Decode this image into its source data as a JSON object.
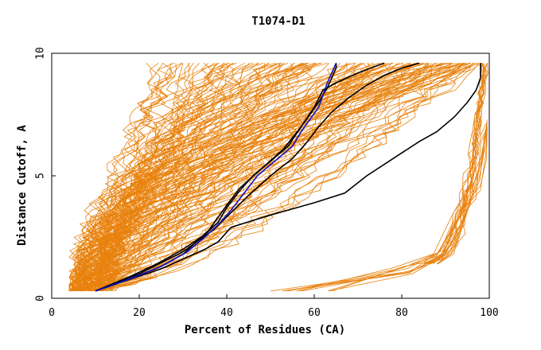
{
  "chart_data": {
    "type": "line",
    "title": "T1074-D1",
    "xlabel": "Percent of Residues (CA)",
    "ylabel": "Distance Cutoff, A",
    "xlim": [
      0,
      100
    ],
    "ylim": [
      0,
      10
    ],
    "x_ticks": [
      "0",
      "20",
      "40",
      "60",
      "80",
      "100"
    ],
    "y_ticks": [
      "0",
      "5",
      "10"
    ],
    "grid": false,
    "legend": "none",
    "colors": {
      "background_models": "#e8820e",
      "highlight_black": "#000000",
      "highlight_blue": "#1010c8"
    },
    "highlight_series": [
      {
        "color": "#000000",
        "x": [
          10,
          18,
          24,
          30,
          35,
          38,
          40,
          43,
          46,
          50,
          54,
          57,
          59,
          61,
          63,
          64,
          65,
          65
        ],
        "y": [
          0.3,
          0.9,
          1.4,
          2.0,
          2.6,
          3.1,
          3.7,
          4.4,
          5.0,
          5.6,
          6.2,
          7.0,
          7.5,
          8.0,
          8.6,
          9.0,
          9.4,
          9.6
        ]
      },
      {
        "color": "#000000",
        "x": [
          10,
          20,
          30,
          37,
          41,
          45,
          50,
          55,
          58,
          61,
          64,
          68,
          72,
          76,
          80,
          84
        ],
        "y": [
          0.3,
          1.0,
          1.9,
          2.8,
          3.5,
          4.2,
          5.0,
          5.7,
          6.3,
          7.0,
          7.6,
          8.2,
          8.7,
          9.1,
          9.4,
          9.6
        ]
      },
      {
        "color": "#000000",
        "x": [
          10,
          25,
          35,
          38,
          41,
          50,
          60,
          67,
          72,
          78,
          84,
          88,
          92,
          95,
          97,
          98,
          98
        ],
        "y": [
          0.3,
          1.2,
          2.0,
          2.3,
          2.9,
          3.4,
          3.9,
          4.3,
          5.0,
          5.7,
          6.4,
          6.8,
          7.4,
          8.0,
          8.5,
          9.0,
          9.6
        ]
      },
      {
        "color": "#000000",
        "x": [
          10,
          18,
          25,
          30,
          33,
          36,
          38,
          40,
          43,
          48,
          53,
          57,
          60,
          62,
          65,
          70,
          76
        ],
        "y": [
          0.3,
          0.8,
          1.3,
          1.8,
          2.3,
          2.8,
          3.3,
          3.8,
          4.5,
          5.3,
          6.1,
          7.0,
          7.8,
          8.5,
          8.8,
          9.2,
          9.6
        ]
      },
      {
        "color": "#1010c8",
        "x": [
          10,
          18,
          25,
          31,
          35,
          38,
          41,
          44,
          47,
          51,
          55,
          57,
          59,
          61,
          62,
          63,
          64,
          65
        ],
        "y": [
          0.3,
          0.8,
          1.3,
          1.9,
          2.5,
          3.0,
          3.6,
          4.3,
          5.0,
          5.6,
          6.2,
          6.8,
          7.3,
          7.8,
          8.3,
          8.8,
          9.2,
          9.6
        ]
      }
    ]
  }
}
